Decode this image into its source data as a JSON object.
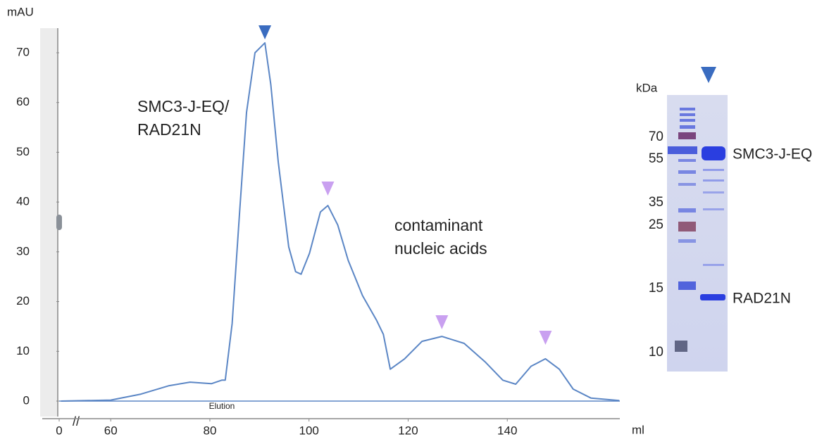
{
  "chart_data": {
    "type": "line",
    "y_label": "mAU",
    "x_label": "ml",
    "x": [
      50,
      60,
      66.1,
      71.8,
      76,
      80.3,
      82.4,
      83.1,
      84.5,
      86,
      87.4,
      89.1,
      91.1,
      92.3,
      93.8,
      95.9,
      97.3,
      98.4,
      100.1,
      102.3,
      103.8,
      105.8,
      107.9,
      110.8,
      113.6,
      115,
      116.4,
      119.3,
      122.8,
      126.8,
      131.3,
      135.6,
      139.1,
      141.7,
      144.8,
      147.7,
      150.5,
      153.3,
      156.9,
      162.6
    ],
    "series": [
      {
        "name": null,
        "color": "#5b86c5",
        "values": [
          0,
          0.2,
          1.4,
          3.1,
          3.8,
          3.5,
          4.2,
          4.2,
          15.6,
          38,
          58,
          70,
          72,
          63.6,
          48,
          31,
          26,
          25.5,
          29.7,
          38,
          39.3,
          35.4,
          28.3,
          21.2,
          16.3,
          13.4,
          6.4,
          8.5,
          12,
          13,
          11.6,
          7.8,
          4.2,
          3.4,
          7,
          8.5,
          6.4,
          2.4,
          0.6,
          0.1
        ]
      }
    ],
    "xlim": [
      0,
      162.7
    ],
    "x_break": [
      0,
      49.6
    ],
    "xticks": [
      0,
      60,
      80,
      100,
      120,
      140
    ],
    "ylim": [
      -3,
      75
    ],
    "yticks": [
      0,
      10,
      20,
      30,
      40,
      50,
      60,
      70
    ],
    "peak_markers": [
      {
        "x": 91.1,
        "color": "#3a6cc0"
      },
      {
        "x": 103.8,
        "color": "#c9a0f0"
      },
      {
        "x": 126.8,
        "color": "#c9a0f0"
      },
      {
        "x": 147.7,
        "color": "#c9a0f0"
      }
    ],
    "annotations": [
      {
        "lines": [
          "SMC3-J-EQ/",
          "RAD21N"
        ],
        "color": "#4a78c8"
      },
      {
        "lines": [
          "contaminant",
          "nucleic acids"
        ],
        "color": "#7a3fa8"
      }
    ],
    "baseline_label": "Elution"
  },
  "gel": {
    "unit_label": "kDa",
    "markers": [
      {
        "label": 70,
        "color": "#e01010"
      },
      {
        "label": 55,
        "color": "#222222"
      },
      {
        "label": 35,
        "color": "#222222"
      },
      {
        "label": 25,
        "color": "#e01010"
      },
      {
        "label": 15,
        "color": "#222222"
      },
      {
        "label": 10,
        "color": "#222222"
      }
    ],
    "bands": [
      {
        "label": "SMC3-J-EQ",
        "color": "#13b5ea"
      },
      {
        "label": "RAD21N",
        "color": "#5a8a3a"
      }
    ]
  }
}
